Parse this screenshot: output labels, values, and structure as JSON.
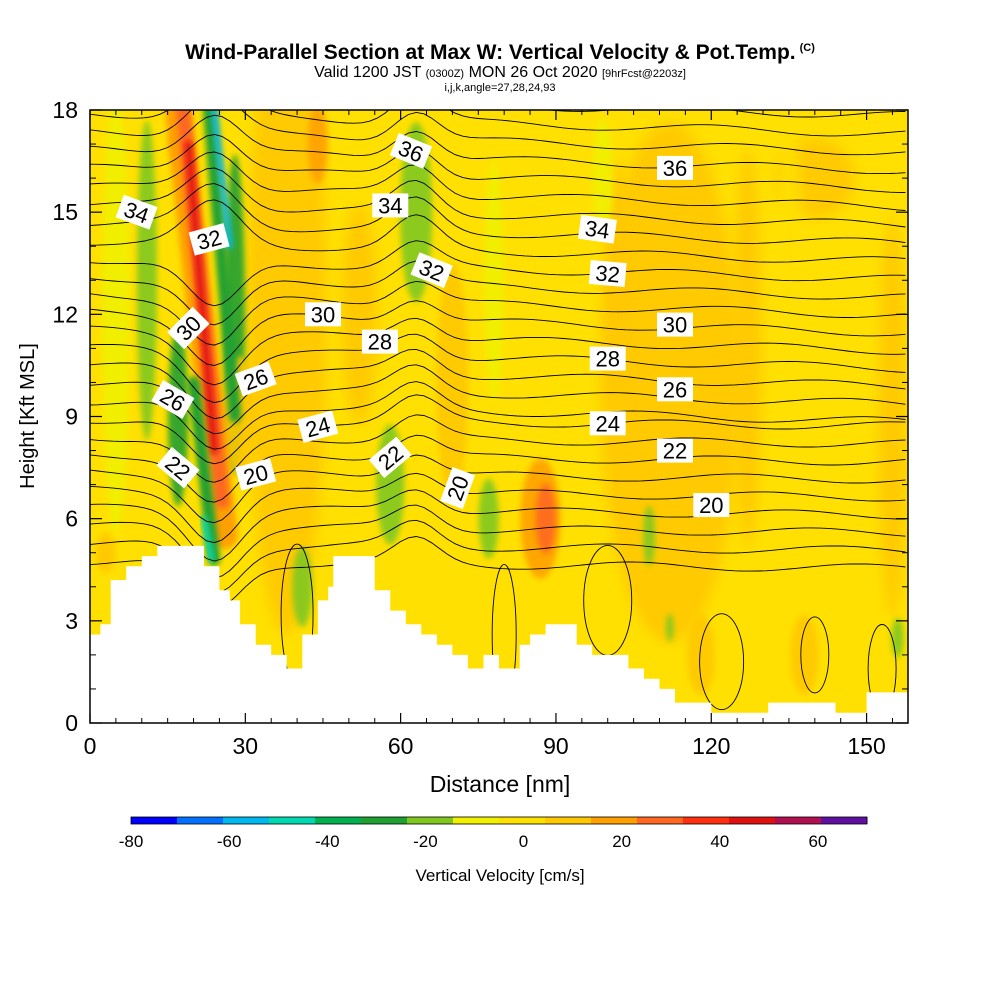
{
  "header": {
    "title": "Wind-Parallel Section at Max W: Vertical Velocity & Pot.Temp.",
    "title_suffix": "(C)",
    "valid_prefix": "Valid 1200 JST",
    "valid_z": "(0300Z)",
    "valid_date": "MON 26 Oct 2020",
    "forecast_info": "[9hrFcst@2203z]",
    "indices": "i,j,k,angle=27,28,24,93"
  },
  "chart_data": {
    "type": "heatmap",
    "xlabel": "Distance [nm]",
    "ylabel": "Height [Kft MSL]",
    "xlim": [
      0,
      158
    ],
    "ylim": [
      0,
      18
    ],
    "x_ticks": [
      0,
      30,
      60,
      90,
      120,
      150
    ],
    "y_ticks": [
      0,
      3,
      6,
      9,
      12,
      15,
      18
    ],
    "colorbar": {
      "label": "Vertical Velocity [cm/s]",
      "range": [
        -80,
        70
      ],
      "tick_values": [
        -80,
        -60,
        -40,
        -20,
        0,
        20,
        40,
        60
      ],
      "colors": [
        "#0000ff",
        "#0070ff",
        "#00b8f0",
        "#00d8b0",
        "#00b050",
        "#20a030",
        "#80c820",
        "#f0f000",
        "#ffe000",
        "#ffc800",
        "#ffa000",
        "#ff6820",
        "#ff3010",
        "#e01010",
        "#b01050",
        "#6010a0"
      ]
    },
    "series_meaning": "shaded: vertical velocity (cm/s); contours: potential temperature (C)",
    "terrain": [
      [
        0,
        2.6
      ],
      [
        2,
        2.6
      ],
      [
        2,
        2.9
      ],
      [
        4,
        2.9
      ],
      [
        4,
        4.2
      ],
      [
        7,
        4.2
      ],
      [
        7,
        4.6
      ],
      [
        10,
        4.6
      ],
      [
        10,
        4.9
      ],
      [
        13,
        4.9
      ],
      [
        13,
        5.2
      ],
      [
        22,
        5.2
      ],
      [
        22,
        4.6
      ],
      [
        25,
        4.6
      ],
      [
        25,
        3.9
      ],
      [
        27,
        3.9
      ],
      [
        27,
        3.6
      ],
      [
        29,
        3.6
      ],
      [
        29,
        2.9
      ],
      [
        32,
        2.9
      ],
      [
        32,
        2.3
      ],
      [
        35,
        2.3
      ],
      [
        35,
        2.0
      ],
      [
        38,
        2.0
      ],
      [
        38,
        1.6
      ],
      [
        41,
        1.6
      ],
      [
        41,
        2.6
      ],
      [
        44,
        2.6
      ],
      [
        44,
        3.6
      ],
      [
        46,
        3.6
      ],
      [
        46,
        4.0
      ],
      [
        47,
        4.0
      ],
      [
        47,
        4.9
      ],
      [
        55,
        4.9
      ],
      [
        55,
        3.9
      ],
      [
        58,
        3.9
      ],
      [
        58,
        3.3
      ],
      [
        61,
        3.3
      ],
      [
        61,
        2.9
      ],
      [
        64,
        2.9
      ],
      [
        64,
        2.6
      ],
      [
        67,
        2.6
      ],
      [
        67,
        2.3
      ],
      [
        70,
        2.3
      ],
      [
        70,
        2.0
      ],
      [
        73,
        2.0
      ],
      [
        73,
        1.6
      ],
      [
        76,
        1.6
      ],
      [
        76,
        2.0
      ],
      [
        79,
        2.0
      ],
      [
        79,
        1.6
      ],
      [
        83,
        1.6
      ],
      [
        83,
        2.3
      ],
      [
        85,
        2.3
      ],
      [
        85,
        2.6
      ],
      [
        88,
        2.6
      ],
      [
        88,
        2.9
      ],
      [
        94,
        2.9
      ],
      [
        94,
        2.3
      ],
      [
        97,
        2.3
      ],
      [
        97,
        2.0
      ],
      [
        104,
        2.0
      ],
      [
        104,
        1.6
      ],
      [
        107,
        1.6
      ],
      [
        107,
        1.3
      ],
      [
        110,
        1.3
      ],
      [
        110,
        1.0
      ],
      [
        113,
        1.0
      ],
      [
        113,
        0.6
      ],
      [
        120,
        0.6
      ],
      [
        120,
        0.3
      ],
      [
        131,
        0.3
      ],
      [
        131,
        0.6
      ],
      [
        144,
        0.6
      ],
      [
        144,
        0.3
      ],
      [
        150,
        0.3
      ],
      [
        150,
        0.9
      ],
      [
        158,
        0.9
      ]
    ],
    "contour_labels": [
      {
        "text": "36",
        "x": 62,
        "y": 16.8,
        "rot": 22
      },
      {
        "text": "36",
        "x": 113,
        "y": 16.3,
        "rot": 0
      },
      {
        "text": "34",
        "x": 9,
        "y": 15.0,
        "rot": 20
      },
      {
        "text": "34",
        "x": 58,
        "y": 15.2,
        "rot": 0
      },
      {
        "text": "34",
        "x": 98,
        "y": 14.5,
        "rot": 8
      },
      {
        "text": "32",
        "x": 23,
        "y": 14.2,
        "rot": -15
      },
      {
        "text": "32",
        "x": 66,
        "y": 13.3,
        "rot": 22
      },
      {
        "text": "32",
        "x": 100,
        "y": 13.2,
        "rot": 5
      },
      {
        "text": "30",
        "x": 19,
        "y": 11.6,
        "rot": -45
      },
      {
        "text": "30",
        "x": 45,
        "y": 12.0,
        "rot": 0
      },
      {
        "text": "30",
        "x": 113,
        "y": 11.7,
        "rot": 0
      },
      {
        "text": "28",
        "x": 56,
        "y": 11.2,
        "rot": 0
      },
      {
        "text": "28",
        "x": 100,
        "y": 10.7,
        "rot": 0
      },
      {
        "text": "26",
        "x": 16,
        "y": 9.5,
        "rot": 30
      },
      {
        "text": "26",
        "x": 32,
        "y": 10.1,
        "rot": -20
      },
      {
        "text": "26",
        "x": 113,
        "y": 9.8,
        "rot": 0
      },
      {
        "text": "24",
        "x": 44,
        "y": 8.7,
        "rot": -15
      },
      {
        "text": "24",
        "x": 100,
        "y": 8.8,
        "rot": 0
      },
      {
        "text": "22",
        "x": 17,
        "y": 7.5,
        "rot": 40
      },
      {
        "text": "22",
        "x": 58,
        "y": 7.8,
        "rot": -40
      },
      {
        "text": "22",
        "x": 113,
        "y": 8.0,
        "rot": 0
      },
      {
        "text": "20",
        "x": 32,
        "y": 7.3,
        "rot": -15
      },
      {
        "text": "20",
        "x": 71,
        "y": 6.9,
        "rot": -70
      },
      {
        "text": "20",
        "x": 120,
        "y": 6.4,
        "rot": 0
      }
    ],
    "updraft_bands": [
      {
        "x_top": 19,
        "x_bot": 25,
        "y_top": 18,
        "y_bot": 4.5,
        "w": 0.0,
        "value": 40
      },
      {
        "x_top": 64,
        "x_bot": 66,
        "y_top": 12,
        "y_bot": 9,
        "value": 10
      },
      {
        "x_top": 88,
        "x_bot": 87,
        "y_top": 7.5,
        "y_bot": 5,
        "value": 20
      }
    ]
  },
  "colorbar_ticks_text": [
    "-80",
    "-60",
    "-40",
    "-20",
    "0",
    "20",
    "40",
    "60"
  ]
}
